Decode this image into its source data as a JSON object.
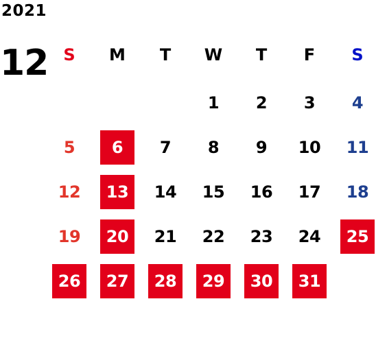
{
  "calendar": {
    "year": "2021",
    "month": "12",
    "weekdays": [
      {
        "label": "S",
        "color": "#e2001a"
      },
      {
        "label": "M",
        "color": "#000000"
      },
      {
        "label": "T",
        "color": "#000000"
      },
      {
        "label": "W",
        "color": "#000000"
      },
      {
        "label": "T",
        "color": "#000000"
      },
      {
        "label": "F",
        "color": "#000000"
      },
      {
        "label": "S",
        "color": "#0010c8"
      }
    ],
    "colors": {
      "sunday": "#e2362b",
      "saturday": "#1e3f8f",
      "weekday": "#000000",
      "highlight_bg": "#e2001a",
      "highlight_text": "#ffffff"
    },
    "first_weekday_index": 3,
    "days": [
      "1",
      "2",
      "3",
      "4",
      "5",
      "6",
      "7",
      "8",
      "9",
      "10",
      "11",
      "12",
      "13",
      "14",
      "15",
      "16",
      "17",
      "18",
      "19",
      "20",
      "21",
      "22",
      "23",
      "24",
      "25",
      "26",
      "27",
      "28",
      "29",
      "30",
      "31"
    ],
    "highlighted_days": [
      "6",
      "13",
      "20",
      "25",
      "26",
      "27",
      "28",
      "29",
      "30",
      "31"
    ]
  }
}
